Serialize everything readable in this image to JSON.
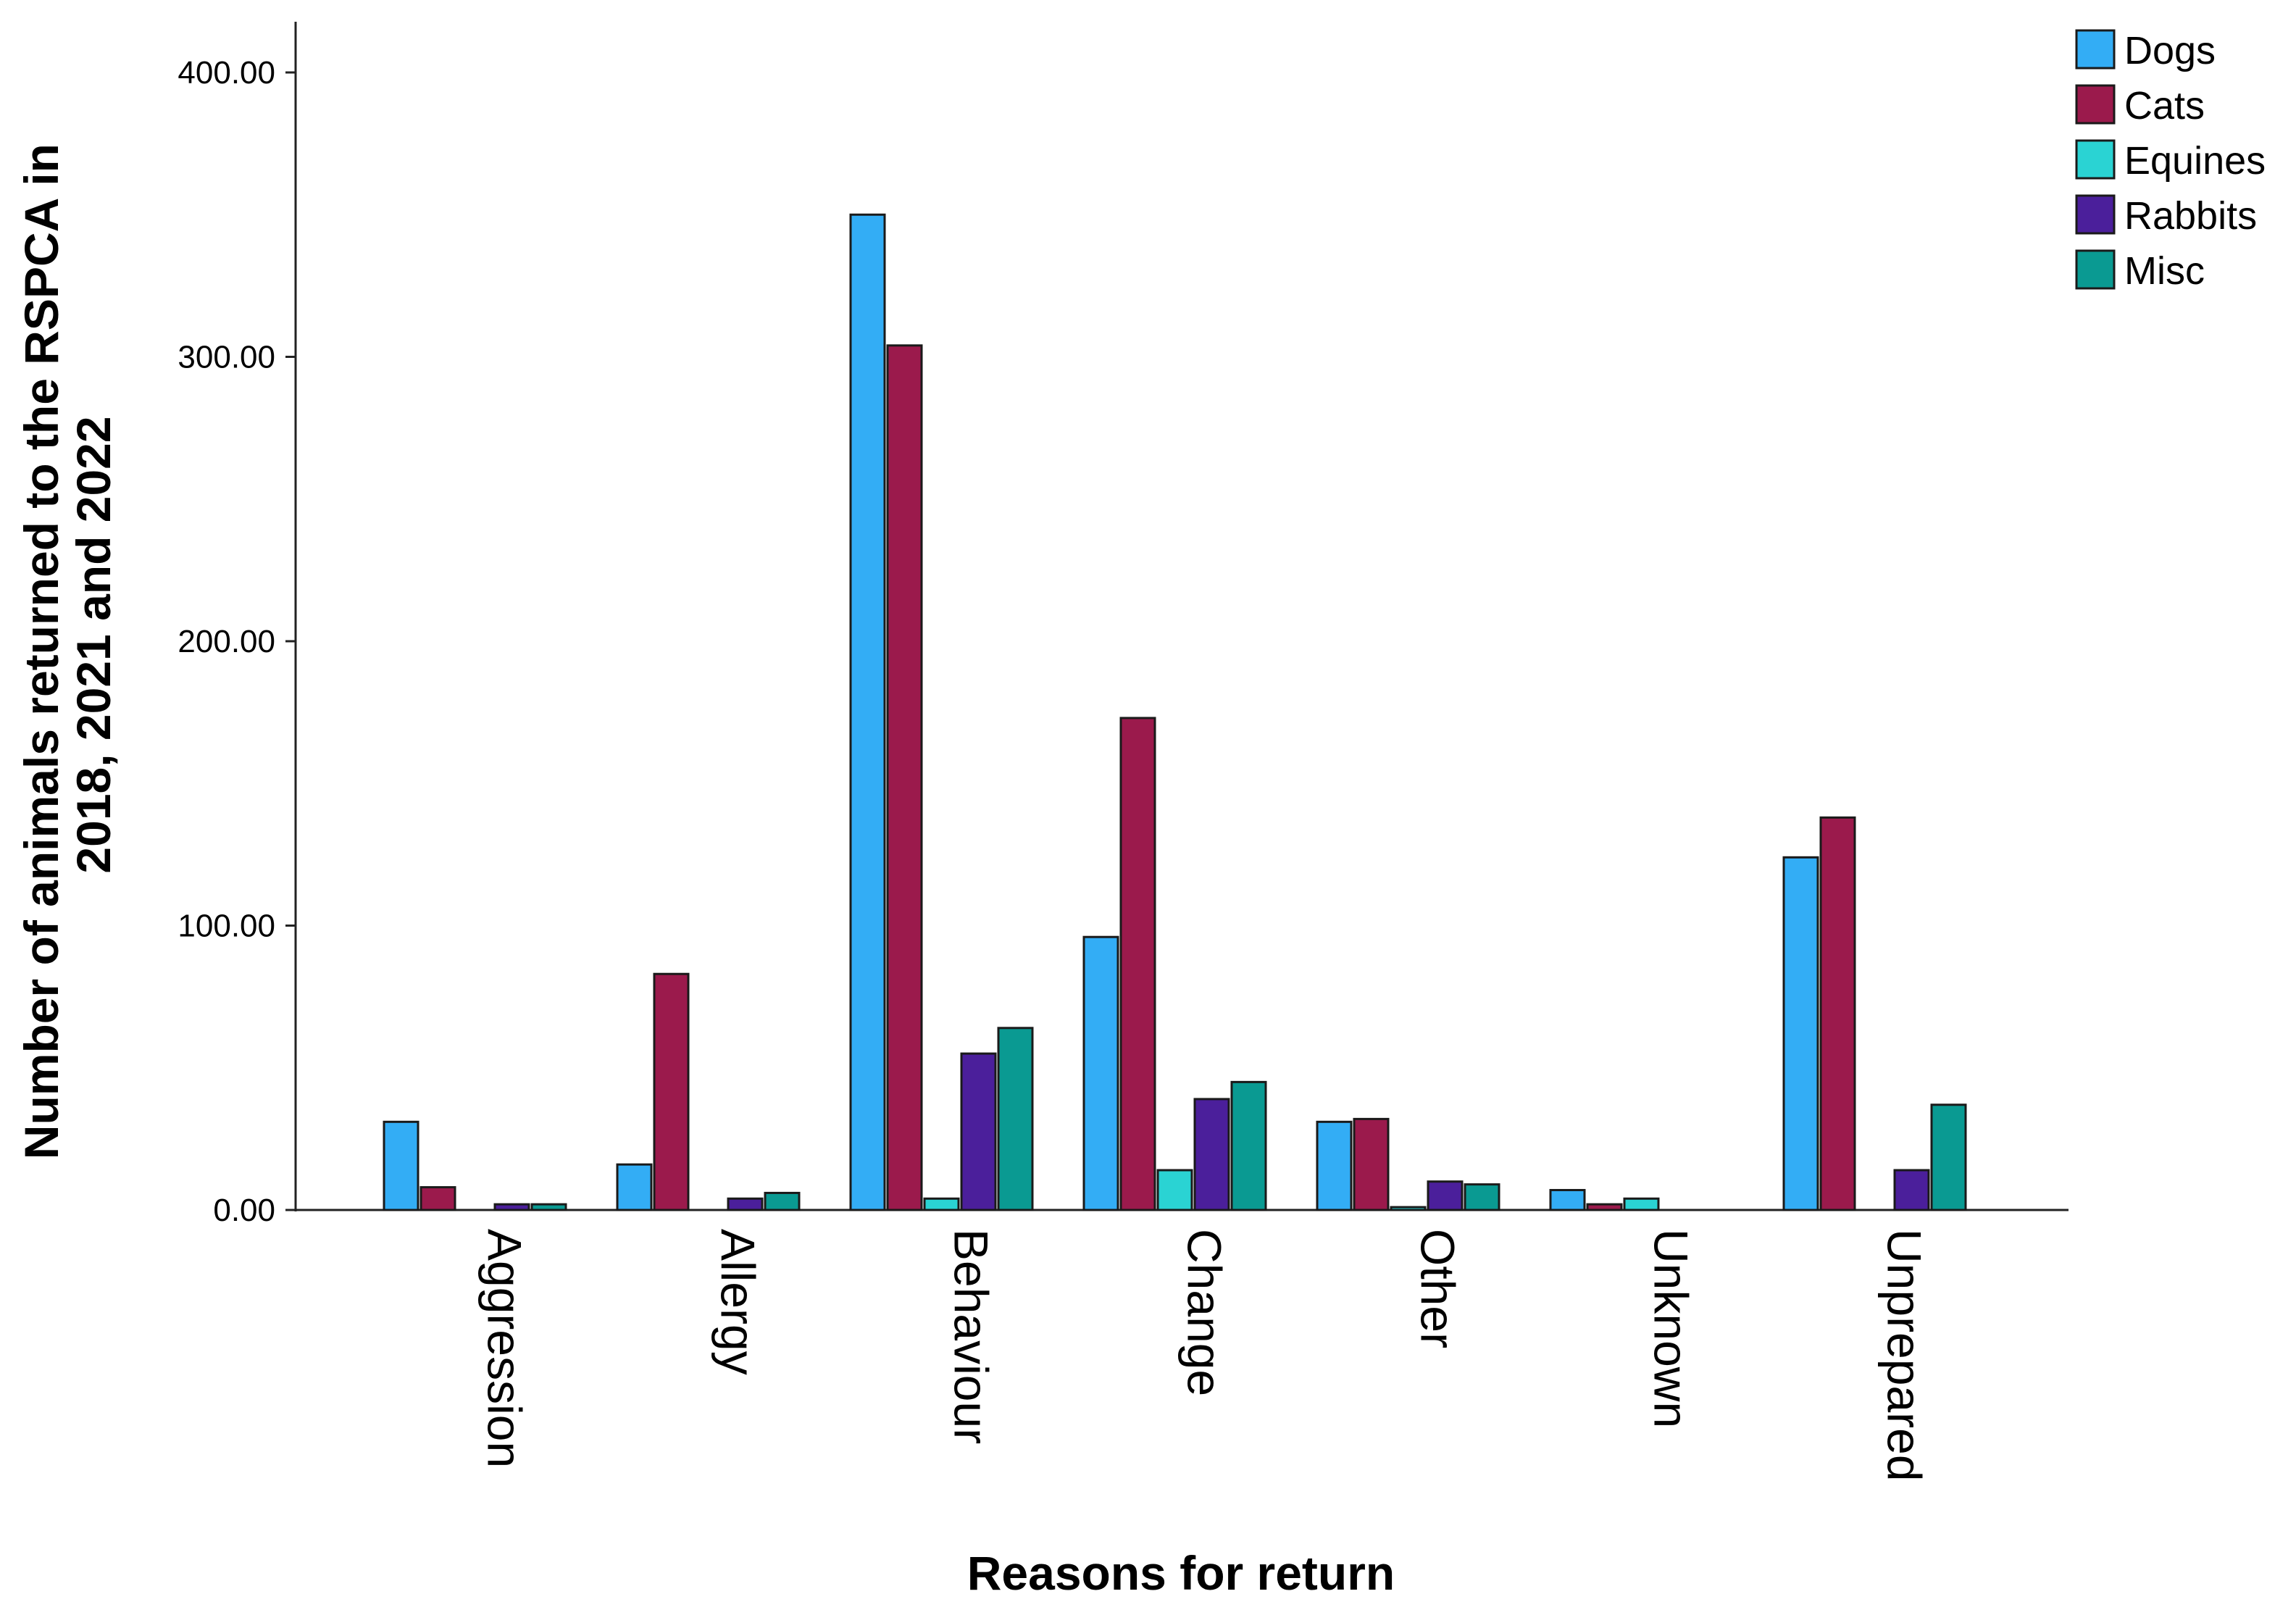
{
  "chart_data": {
    "type": "bar",
    "xlabel": "Reasons for return",
    "ylabel_lines": [
      "Number of animals returned to the RSPCA in",
      "2018, 2021 and 2022"
    ],
    "ylim": [
      0,
      420
    ],
    "yticks": [
      0,
      100,
      200,
      300,
      400
    ],
    "ytick_labels": [
      "0.00",
      "100.00",
      "200.00",
      "300.00",
      "400.00"
    ],
    "grid": false,
    "legend_position": "top-right",
    "categories": [
      "Aggression",
      "Allergy",
      "Behaviour",
      "Change",
      "Other",
      "Unknown",
      "Unprepared"
    ],
    "series": [
      {
        "name": "Dogs",
        "color": "#33adf5",
        "values": [
          31,
          16,
          350,
          96,
          31,
          7,
          124
        ]
      },
      {
        "name": "Cats",
        "color": "#9b1a4c",
        "values": [
          8,
          83,
          304,
          173,
          32,
          2,
          138
        ]
      },
      {
        "name": "Equines",
        "color": "#2ad3d3",
        "values": [
          0,
          0,
          4,
          14,
          1,
          4,
          0
        ]
      },
      {
        "name": "Rabbits",
        "color": "#4b1f9b",
        "values": [
          2,
          4,
          55,
          39,
          10,
          0,
          14
        ]
      },
      {
        "name": "Misc",
        "color": "#0a9a92",
        "values": [
          2,
          6,
          64,
          45,
          9,
          0,
          37
        ]
      }
    ]
  }
}
